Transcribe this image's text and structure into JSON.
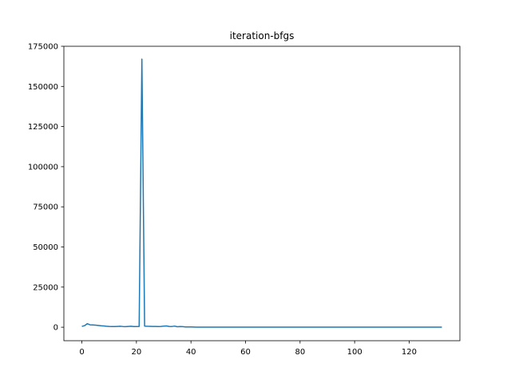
{
  "chart_data": {
    "type": "line",
    "title": "iteration-bfgs",
    "xlabel": "",
    "ylabel": "",
    "xlim": [
      -6.6,
      138.6
    ],
    "ylim": [
      -8400,
      175000
    ],
    "xticks": [
      0,
      20,
      40,
      60,
      80,
      100,
      120
    ],
    "yticks": [
      0,
      25000,
      50000,
      75000,
      100000,
      125000,
      150000,
      175000
    ],
    "xtick_labels": [
      "0",
      "20",
      "40",
      "60",
      "80",
      100,
      "120"
    ],
    "ytick_labels": [
      "0",
      "25000",
      "50000",
      "75000",
      "100000",
      "125000",
      "150000",
      "175000"
    ],
    "grid": false,
    "legend": "none",
    "series": [
      {
        "color": "#1f77b4",
        "x": [
          0,
          1,
          2,
          3,
          4,
          5,
          6,
          7,
          8,
          9,
          10,
          11,
          12,
          13,
          14,
          15,
          16,
          17,
          18,
          19,
          20,
          21,
          22,
          23,
          24,
          25,
          26,
          27,
          28,
          29,
          30,
          31,
          32,
          33,
          34,
          35,
          36,
          37,
          38,
          39,
          40,
          41,
          42,
          43,
          44,
          45,
          50,
          55,
          60,
          65,
          70,
          75,
          80,
          85,
          90,
          95,
          100,
          105,
          110,
          115,
          120,
          125,
          130,
          132
        ],
        "y": [
          500,
          1000,
          2200,
          1500,
          1400,
          1300,
          1100,
          900,
          800,
          600,
          500,
          450,
          400,
          500,
          600,
          450,
          350,
          500,
          600,
          400,
          450,
          500,
          167000,
          700,
          600,
          550,
          500,
          500,
          450,
          500,
          700,
          800,
          500,
          450,
          700,
          300,
          400,
          350,
          200,
          200,
          150,
          100,
          80,
          60,
          50,
          40,
          30,
          30,
          30,
          30,
          30,
          30,
          30,
          30,
          30,
          30,
          30,
          30,
          30,
          30,
          30,
          30,
          30,
          30
        ]
      }
    ]
  }
}
